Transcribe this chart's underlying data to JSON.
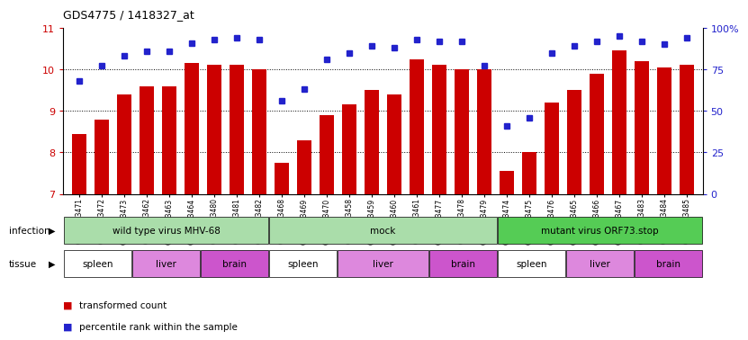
{
  "title": "GDS4775 / 1418327_at",
  "samples": [
    "GSM1243471",
    "GSM1243472",
    "GSM1243473",
    "GSM1243462",
    "GSM1243463",
    "GSM1243464",
    "GSM1243480",
    "GSM1243481",
    "GSM1243482",
    "GSM1243468",
    "GSM1243469",
    "GSM1243470",
    "GSM1243458",
    "GSM1243459",
    "GSM1243460",
    "GSM1243461",
    "GSM1243477",
    "GSM1243478",
    "GSM1243479",
    "GSM1243474",
    "GSM1243475",
    "GSM1243476",
    "GSM1243465",
    "GSM1243466",
    "GSM1243467",
    "GSM1243483",
    "GSM1243484",
    "GSM1243485"
  ],
  "transformed_counts": [
    8.45,
    8.8,
    9.4,
    9.6,
    9.6,
    10.15,
    10.1,
    10.1,
    10.0,
    7.75,
    8.3,
    8.9,
    9.15,
    9.5,
    9.4,
    10.25,
    10.1,
    10.0,
    10.0,
    7.55,
    8.0,
    9.2,
    9.5,
    9.9,
    10.45,
    10.2,
    10.05,
    10.1
  ],
  "percentile_ranks": [
    68,
    77,
    83,
    86,
    86,
    91,
    93,
    94,
    93,
    56,
    63,
    81,
    85,
    89,
    88,
    93,
    92,
    92,
    77,
    41,
    46,
    85,
    89,
    92,
    95,
    92,
    90,
    94
  ],
  "ylim_left": [
    7,
    11
  ],
  "ylim_right": [
    0,
    100
  ],
  "yticks_left": [
    7,
    8,
    9,
    10,
    11
  ],
  "yticks_right": [
    0,
    25,
    50,
    75,
    100
  ],
  "bar_color": "#cc0000",
  "dot_color": "#2222cc",
  "plot_bg": "#ffffff",
  "infection_groups": [
    {
      "label": "wild type virus MHV-68",
      "start": 0,
      "end": 9,
      "color": "#aaddaa"
    },
    {
      "label": "mock",
      "start": 9,
      "end": 19,
      "color": "#aaddaa"
    },
    {
      "label": "mutant virus ORF73.stop",
      "start": 19,
      "end": 28,
      "color": "#55cc55"
    }
  ],
  "tissue_groups": [
    {
      "label": "spleen",
      "start": 0,
      "end": 3,
      "color": "#ffffff"
    },
    {
      "label": "liver",
      "start": 3,
      "end": 6,
      "color": "#dd88dd"
    },
    {
      "label": "brain",
      "start": 6,
      "end": 9,
      "color": "#cc55cc"
    },
    {
      "label": "spleen",
      "start": 9,
      "end": 12,
      "color": "#ffffff"
    },
    {
      "label": "liver",
      "start": 12,
      "end": 16,
      "color": "#dd88dd"
    },
    {
      "label": "brain",
      "start": 16,
      "end": 19,
      "color": "#cc55cc"
    },
    {
      "label": "spleen",
      "start": 19,
      "end": 22,
      "color": "#ffffff"
    },
    {
      "label": "liver",
      "start": 22,
      "end": 25,
      "color": "#dd88dd"
    },
    {
      "label": "brain",
      "start": 25,
      "end": 28,
      "color": "#cc55cc"
    }
  ]
}
